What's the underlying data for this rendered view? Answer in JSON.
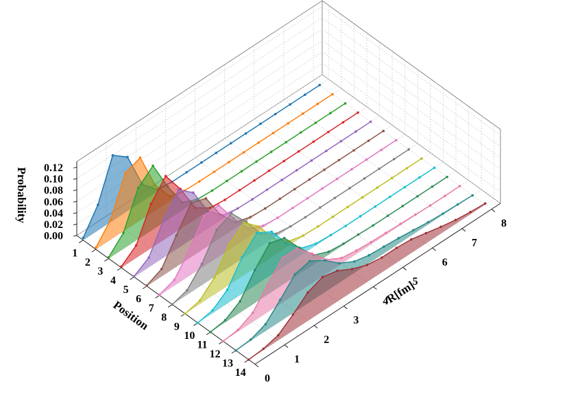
{
  "chart_data": {
    "type": "area3d",
    "xlabel": "R[fm]",
    "ylabel": "Position",
    "zlabel": "Probability",
    "x": [
      0,
      0.5,
      1,
      1.5,
      2,
      2.5,
      3,
      3.5,
      4,
      4.5,
      5,
      5.5,
      6,
      6.5,
      7,
      7.5,
      8
    ],
    "xlim": [
      0,
      8.3
    ],
    "xticks": [
      0,
      1,
      2,
      3,
      4,
      5,
      6,
      7,
      8
    ],
    "ylim": [
      0.5,
      14.5
    ],
    "yticks": [
      1,
      2,
      3,
      4,
      5,
      6,
      7,
      8,
      9,
      10,
      11,
      12,
      13,
      14
    ],
    "zlim": [
      0,
      0.13
    ],
    "zticks": [
      {
        "value": 0,
        "label": "0.00"
      },
      {
        "value": 0.02,
        "label": "0.02"
      },
      {
        "value": 0.04,
        "label": "0.04"
      },
      {
        "value": 0.06,
        "label": "0.06"
      },
      {
        "value": 0.08,
        "label": "0.08"
      },
      {
        "value": 0.1,
        "label": "0.10"
      },
      {
        "value": 0.12,
        "label": "0.12"
      }
    ],
    "grid": true,
    "series": [
      {
        "y": 1,
        "color": "#1f77b4",
        "values": [
          0.004,
          0.045,
          0.115,
          0.095,
          0.03,
          0.004,
          0,
          0,
          0,
          0,
          0,
          0,
          0,
          0,
          0,
          0,
          0
        ]
      },
      {
        "y": 2,
        "color": "#ff7f0e",
        "values": [
          0.003,
          0.035,
          0.1,
          0.11,
          0.045,
          0.008,
          0.001,
          0,
          0,
          0,
          0,
          0,
          0,
          0,
          0,
          0,
          0
        ]
      },
      {
        "y": 3,
        "color": "#2ca02c",
        "values": [
          0.002,
          0.028,
          0.09,
          0.112,
          0.058,
          0.013,
          0.002,
          0,
          0,
          0,
          0,
          0,
          0,
          0,
          0,
          0,
          0
        ]
      },
      {
        "y": 4,
        "color": "#d62728",
        "values": [
          0.002,
          0.022,
          0.078,
          0.11,
          0.07,
          0.02,
          0.003,
          0,
          0,
          0,
          0,
          0,
          0,
          0,
          0,
          0,
          0
        ]
      },
      {
        "y": 5,
        "color": "#9467bd",
        "values": [
          0.001,
          0.017,
          0.066,
          0.102,
          0.08,
          0.03,
          0.006,
          0.001,
          0,
          0,
          0,
          0,
          0,
          0,
          0,
          0,
          0
        ]
      },
      {
        "y": 6,
        "color": "#8c564b",
        "values": [
          0.001,
          0.013,
          0.055,
          0.095,
          0.086,
          0.04,
          0.01,
          0.002,
          0,
          0,
          0,
          0,
          0,
          0,
          0,
          0,
          0
        ]
      },
      {
        "y": 7,
        "color": "#e377c2",
        "values": [
          0.001,
          0.01,
          0.045,
          0.088,
          0.09,
          0.05,
          0.015,
          0.003,
          0,
          0,
          0,
          0,
          0,
          0,
          0,
          0,
          0
        ]
      },
      {
        "y": 8,
        "color": "#7f7f7f",
        "values": [
          0,
          0.008,
          0.037,
          0.08,
          0.092,
          0.06,
          0.022,
          0.005,
          0.001,
          0,
          0,
          0,
          0,
          0,
          0,
          0,
          0
        ]
      },
      {
        "y": 9,
        "color": "#bcbd22",
        "values": [
          0,
          0.006,
          0.03,
          0.072,
          0.092,
          0.068,
          0.03,
          0.008,
          0.001,
          0,
          0,
          0,
          0,
          0,
          0,
          0,
          0
        ]
      },
      {
        "y": 10,
        "color": "#17becf",
        "values": [
          0,
          0.005,
          0.024,
          0.064,
          0.09,
          0.075,
          0.038,
          0.012,
          0.003,
          0.001,
          0,
          0,
          0,
          0,
          0,
          0,
          0
        ]
      },
      {
        "y": 11,
        "color": "#2e8b57",
        "values": [
          0,
          0.004,
          0.02,
          0.058,
          0.088,
          0.08,
          0.046,
          0.016,
          0.005,
          0.002,
          0.001,
          0,
          0,
          0,
          0,
          0,
          0
        ]
      },
      {
        "y": 12,
        "color": "#e87aa8",
        "values": [
          0,
          0.003,
          0.016,
          0.048,
          0.078,
          0.078,
          0.052,
          0.024,
          0.01,
          0.006,
          0.004,
          0.003,
          0.002,
          0.001,
          0,
          0,
          0
        ]
      },
      {
        "y": 13,
        "color": "#2a8a8a",
        "values": [
          0,
          0.002,
          0.012,
          0.038,
          0.066,
          0.072,
          0.056,
          0.034,
          0.02,
          0.014,
          0.012,
          0.01,
          0.007,
          0.004,
          0.002,
          0.001,
          0
        ]
      },
      {
        "y": 14,
        "color": "#a0333a",
        "values": [
          0,
          0.002,
          0.009,
          0.028,
          0.05,
          0.06,
          0.054,
          0.04,
          0.03,
          0.026,
          0.026,
          0.024,
          0.018,
          0.012,
          0.007,
          0.004,
          0.002
        ]
      }
    ]
  }
}
